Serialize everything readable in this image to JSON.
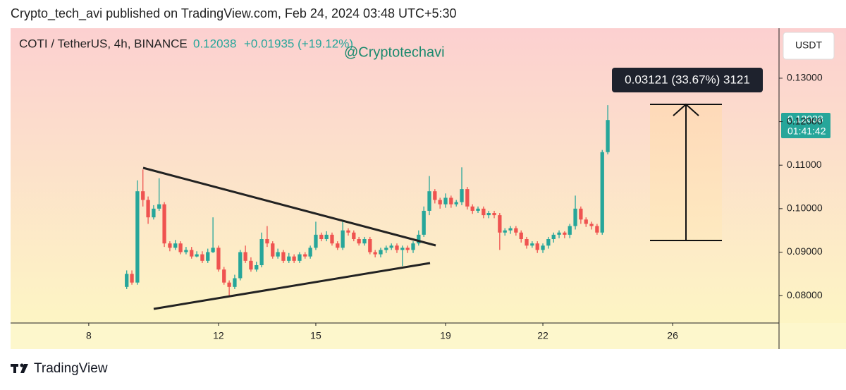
{
  "header": {
    "published": "Crypto_tech_avi published on TradingView.com, Feb 24, 2024 03:48 UTC+5:30"
  },
  "chart_data": {
    "type": "candlestick",
    "title": "COTI / TetherUS, 4h, BINANCE",
    "last_price": "0.12038",
    "change": "+0.01935 (+19.12%)",
    "watermark": "@Cryptotechavi",
    "currency": "USDT",
    "price_tag": "0.12038",
    "countdown": "01:41:42",
    "measure_label": "0.03121 (33.67%) 3121",
    "up_color": "#26a69a",
    "down_color": "#ef5350",
    "x": [
      9.17,
      9.33,
      9.5,
      9.67,
      9.83,
      10,
      10.17,
      10.33,
      10.5,
      10.67,
      10.83,
      11,
      11.17,
      11.33,
      11.5,
      11.67,
      11.83,
      12,
      12.17,
      12.33,
      12.5,
      12.67,
      12.83,
      13,
      13.17,
      13.33,
      13.5,
      13.67,
      13.83,
      14,
      14.17,
      14.33,
      14.5,
      14.67,
      14.83,
      15,
      15.17,
      15.33,
      15.5,
      15.67,
      15.83,
      16,
      16.17,
      16.33,
      16.5,
      16.67,
      16.83,
      17,
      17.17,
      17.33,
      17.5,
      17.67,
      17.83,
      18,
      18.17,
      18.33,
      18.5,
      18.67,
      18.83,
      19,
      19.17,
      19.33,
      19.5,
      19.67,
      19.83,
      20,
      20.17,
      20.33,
      20.5,
      20.67,
      20.83,
      21,
      21.17,
      21.33,
      21.5,
      21.67,
      21.83,
      22,
      22.17,
      22.33,
      22.5,
      22.67,
      22.83,
      23,
      23.17,
      23.33,
      23.5,
      23.67,
      23.83,
      24
    ],
    "open": [
      0.082,
      0.085,
      0.083,
      0.104,
      0.102,
      0.098,
      0.1,
      0.101,
      0.092,
      0.091,
      0.092,
      0.09,
      0.0905,
      0.089,
      0.0895,
      0.088,
      0.09,
      0.091,
      0.086,
      0.083,
      0.082,
      0.084,
      0.09,
      0.088,
      0.086,
      0.087,
      0.093,
      0.092,
      0.089,
      0.09,
      0.088,
      0.089,
      0.088,
      0.0895,
      0.089,
      0.091,
      0.094,
      0.093,
      0.094,
      0.092,
      0.091,
      0.095,
      0.0945,
      0.093,
      0.092,
      0.093,
      0.09,
      0.0895,
      0.0905,
      0.091,
      0.0915,
      0.0905,
      0.091,
      0.0905,
      0.092,
      0.094,
      0.0995,
      0.104,
      0.102,
      0.101,
      0.1025,
      0.101,
      0.1015,
      0.1045,
      0.1005,
      0.0995,
      0.1,
      0.0985,
      0.099,
      0.0985,
      0.0945,
      0.095,
      0.0955,
      0.0945,
      0.093,
      0.0915,
      0.092,
      0.0905,
      0.0915,
      0.093,
      0.094,
      0.0945,
      0.094,
      0.096,
      0.1,
      0.0975,
      0.0965,
      0.096,
      0.0945,
      0.113
    ],
    "high": [
      0.0858,
      0.0858,
      0.1065,
      0.109,
      0.1028,
      0.1008,
      0.107,
      0.1015,
      0.0925,
      0.0928,
      0.0925,
      0.0912,
      0.0912,
      0.0902,
      0.0902,
      0.0908,
      0.098,
      0.0915,
      0.0866,
      0.0835,
      0.0848,
      0.0905,
      0.0915,
      0.0888,
      0.0878,
      0.0945,
      0.096,
      0.0925,
      0.0908,
      0.0905,
      0.0898,
      0.0895,
      0.09,
      0.09,
      0.0915,
      0.097,
      0.0945,
      0.0948,
      0.0945,
      0.0925,
      0.097,
      0.0955,
      0.095,
      0.0935,
      0.0935,
      0.0935,
      0.0905,
      0.091,
      0.0915,
      0.092,
      0.092,
      0.0915,
      0.0915,
      0.0925,
      0.095,
      0.1005,
      0.1075,
      0.1045,
      0.1025,
      0.1035,
      0.103,
      0.102,
      0.1095,
      0.105,
      0.101,
      0.1005,
      0.1005,
      0.0995,
      0.0995,
      0.099,
      0.0955,
      0.096,
      0.096,
      0.095,
      0.0935,
      0.0925,
      0.0925,
      0.092,
      0.0935,
      0.0945,
      0.095,
      0.0948,
      0.0965,
      0.103,
      0.1005,
      0.098,
      0.097,
      0.0965,
      0.1135,
      0.1238
    ],
    "low": [
      0.0815,
      0.0825,
      0.0825,
      0.1005,
      0.0965,
      0.0975,
      0.0995,
      0.0912,
      0.0902,
      0.0905,
      0.0895,
      0.0895,
      0.0885,
      0.0888,
      0.0875,
      0.0875,
      0.0898,
      0.0855,
      0.0825,
      0.08,
      0.0815,
      0.0835,
      0.0875,
      0.0855,
      0.0855,
      0.0865,
      0.0912,
      0.0885,
      0.0885,
      0.0875,
      0.0875,
      0.0875,
      0.0875,
      0.0885,
      0.0885,
      0.0905,
      0.0925,
      0.0925,
      0.0915,
      0.0905,
      0.0905,
      0.0938,
      0.0925,
      0.0915,
      0.0915,
      0.0895,
      0.0888,
      0.0888,
      0.0898,
      0.0905,
      0.0898,
      0.0868,
      0.0898,
      0.0898,
      0.0915,
      0.0935,
      0.0985,
      0.1012,
      0.1,
      0.1002,
      0.1002,
      0.1005,
      0.1008,
      0.0998,
      0.0988,
      0.099,
      0.0978,
      0.0978,
      0.0978,
      0.0905,
      0.0938,
      0.0942,
      0.0938,
      0.0922,
      0.0908,
      0.091,
      0.0898,
      0.0898,
      0.0908,
      0.0922,
      0.0932,
      0.0932,
      0.0932,
      0.0952,
      0.0965,
      0.0958,
      0.0952,
      0.094,
      0.094,
      0.1125
    ],
    "close": [
      0.085,
      0.083,
      0.104,
      0.102,
      0.098,
      0.1,
      0.101,
      0.092,
      0.091,
      0.092,
      0.09,
      0.0905,
      0.089,
      0.0895,
      0.088,
      0.09,
      0.091,
      0.086,
      0.083,
      0.082,
      0.084,
      0.09,
      0.088,
      0.086,
      0.087,
      0.093,
      0.092,
      0.089,
      0.09,
      0.088,
      0.089,
      0.088,
      0.0895,
      0.089,
      0.091,
      0.094,
      0.093,
      0.094,
      0.092,
      0.091,
      0.095,
      0.0945,
      0.093,
      0.092,
      0.093,
      0.09,
      0.0895,
      0.0905,
      0.091,
      0.0915,
      0.0905,
      0.091,
      0.0905,
      0.092,
      0.094,
      0.0995,
      0.104,
      0.102,
      0.101,
      0.1025,
      0.101,
      0.1015,
      0.1045,
      0.1005,
      0.0995,
      0.1,
      0.0985,
      0.099,
      0.0985,
      0.0945,
      0.095,
      0.0955,
      0.0945,
      0.093,
      0.0915,
      0.092,
      0.0905,
      0.0915,
      0.093,
      0.094,
      0.0945,
      0.094,
      0.096,
      0.1,
      0.0975,
      0.0965,
      0.096,
      0.0945,
      0.113,
      0.12038
    ],
    "xlim": [
      5.59,
      29.28
    ],
    "xticks": [
      8,
      12,
      15,
      19,
      22,
      26
    ],
    "ylim": [
      0.0737,
      0.1415
    ],
    "yticks": [
      {
        "value": 0.08,
        "label": "0.08000"
      },
      {
        "value": 0.09,
        "label": "0.09000"
      },
      {
        "value": 0.1,
        "label": "0.10000"
      },
      {
        "value": 0.11,
        "label": "0.11000"
      },
      {
        "value": 0.12,
        "label": "0.12000"
      },
      {
        "value": 0.13,
        "label": "0.13000"
      }
    ]
  },
  "footer": {
    "brand": "TradingView"
  }
}
